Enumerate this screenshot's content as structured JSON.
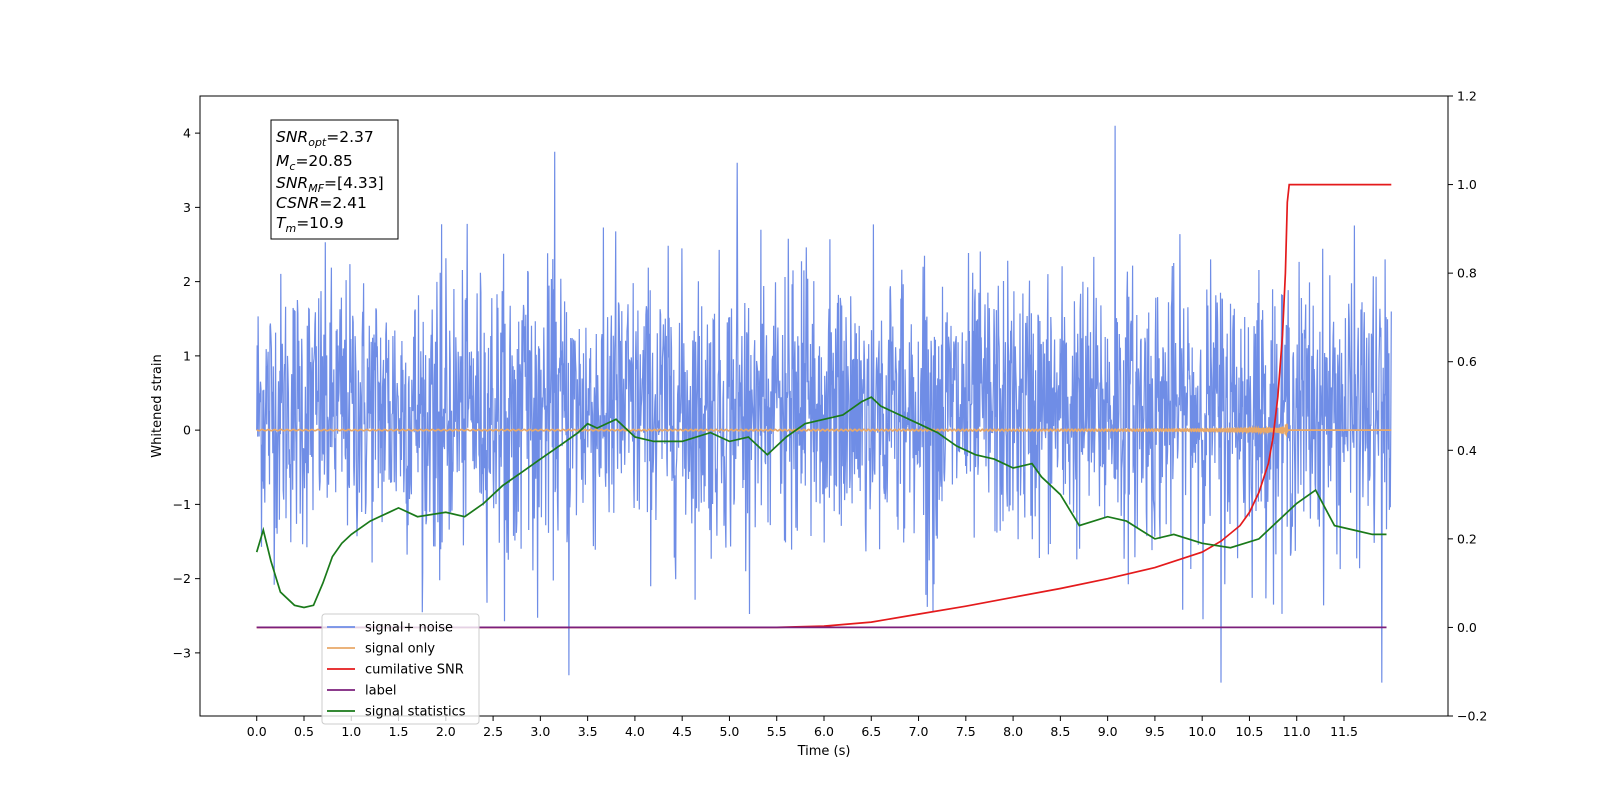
{
  "chart_data": {
    "type": "line",
    "xlabel": "Time (s)",
    "ylabel_left": "Whitened strain",
    "xlim": [
      -0.6,
      12.6
    ],
    "ylim_left": [
      -3.85,
      4.5
    ],
    "ylim_right": [
      -0.2,
      1.2
    ],
    "x_ticks": [
      0.0,
      0.5,
      1.0,
      1.5,
      2.0,
      2.5,
      3.0,
      3.5,
      4.0,
      4.5,
      5.0,
      5.5,
      6.0,
      6.5,
      7.0,
      7.5,
      8.0,
      8.5,
      9.0,
      9.5,
      10.0,
      10.5,
      11.0,
      11.5
    ],
    "x_tick_labels": [
      "0.0",
      "0.5",
      "1.0",
      "1.5",
      "2.0",
      "2.5",
      "3.0",
      "3.5",
      "4.0",
      "4.5",
      "5.0",
      "5.5",
      "6.0",
      "6.5",
      "7.0",
      "7.5",
      "8.0",
      "8.5",
      "9.0",
      "9.5",
      "10.0",
      "10.5",
      "11.0",
      "11.5"
    ],
    "y_ticks_left": [
      -3,
      -2,
      -1,
      0,
      1,
      2,
      3,
      4
    ],
    "y_tick_labels_left": [
      "−3",
      "−2",
      "−1",
      "0",
      "1",
      "2",
      "3",
      "4"
    ],
    "y_ticks_right": [
      -0.2,
      0.0,
      0.2,
      0.4,
      0.6,
      0.8,
      1.0,
      1.2
    ],
    "y_tick_labels_right": [
      "−0.2",
      "0.0",
      "0.2",
      "0.4",
      "0.6",
      "0.8",
      "1.0",
      "1.2"
    ],
    "grid": false,
    "legend_placement": "lower-left",
    "annotation_box": {
      "placement": "top-left",
      "lines": [
        {
          "base": "SNR",
          "sub": "opt",
          "rest": "=2.37"
        },
        {
          "base": "M",
          "sub": "c",
          "rest": "=20.85"
        },
        {
          "base": "SNR",
          "sub": "MF",
          "rest": "=[4.33]"
        },
        {
          "base": "CSNR",
          "sub": "",
          "rest": "=2.41"
        },
        {
          "base": "T",
          "sub": "m",
          "rest": "=10.9"
        }
      ]
    },
    "series": [
      {
        "name": "signal+ noise",
        "axis": "left",
        "color": "#6f8de6",
        "style": "noise",
        "x_range": [
          0.0,
          12.0
        ],
        "typical_range": [
          -1.7,
          2.2
        ],
        "notable_peaks": [
          [
            3.15,
            3.75
          ],
          [
            9.08,
            4.1
          ],
          [
            5.08,
            3.6
          ],
          [
            10.2,
            -3.4
          ],
          [
            11.9,
            -3.4
          ],
          [
            3.3,
            -3.3
          ]
        ]
      },
      {
        "name": "signal only",
        "axis": "left",
        "color": "#e8a868",
        "style": "chirp",
        "x_range": [
          0.0,
          10.9
        ],
        "merger_time": 10.9,
        "peak_amplitude": 0.62
      },
      {
        "name": "cumilative SNR",
        "axis": "right",
        "color": "#e41a1c",
        "x": [
          0.0,
          5.5,
          6.0,
          6.5,
          7.0,
          7.5,
          8.0,
          8.5,
          9.0,
          9.5,
          10.0,
          10.2,
          10.4,
          10.5,
          10.6,
          10.7,
          10.75,
          10.8,
          10.85,
          10.88,
          10.9,
          10.92,
          12.0
        ],
        "values": [
          0.0,
          0.0,
          0.003,
          0.012,
          0.03,
          0.048,
          0.068,
          0.088,
          0.11,
          0.135,
          0.17,
          0.195,
          0.23,
          0.26,
          0.305,
          0.37,
          0.43,
          0.52,
          0.66,
          0.8,
          0.96,
          1.0,
          1.0
        ]
      },
      {
        "name": "label",
        "axis": "right",
        "color": "#7b1f7b",
        "x": [
          0.0,
          11.95
        ],
        "values": [
          0.0,
          0.0
        ]
      },
      {
        "name": "signal statistics",
        "axis": "right",
        "color": "#1a7a1a",
        "x": [
          0.0,
          0.07,
          0.15,
          0.25,
          0.4,
          0.5,
          0.6,
          0.7,
          0.8,
          0.9,
          1.0,
          1.2,
          1.4,
          1.5,
          1.7,
          2.0,
          2.2,
          2.4,
          2.6,
          2.8,
          3.0,
          3.2,
          3.4,
          3.5,
          3.6,
          3.8,
          4.0,
          4.2,
          4.5,
          4.8,
          5.0,
          5.2,
          5.4,
          5.6,
          5.8,
          6.0,
          6.2,
          6.4,
          6.5,
          6.6,
          6.8,
          7.0,
          7.2,
          7.4,
          7.6,
          7.8,
          8.0,
          8.2,
          8.3,
          8.5,
          8.7,
          9.0,
          9.2,
          9.5,
          9.7,
          10.0,
          10.3,
          10.6,
          10.8,
          11.0,
          11.2,
          11.4,
          11.6,
          11.8,
          11.95
        ],
        "values": [
          0.17,
          0.22,
          0.15,
          0.08,
          0.05,
          0.045,
          0.05,
          0.1,
          0.16,
          0.19,
          0.21,
          0.24,
          0.26,
          0.27,
          0.25,
          0.26,
          0.25,
          0.28,
          0.32,
          0.35,
          0.38,
          0.41,
          0.44,
          0.46,
          0.45,
          0.47,
          0.43,
          0.42,
          0.42,
          0.44,
          0.42,
          0.43,
          0.39,
          0.43,
          0.46,
          0.47,
          0.48,
          0.51,
          0.52,
          0.5,
          0.48,
          0.46,
          0.44,
          0.41,
          0.39,
          0.38,
          0.36,
          0.37,
          0.34,
          0.3,
          0.23,
          0.25,
          0.24,
          0.2,
          0.21,
          0.19,
          0.18,
          0.2,
          0.24,
          0.28,
          0.31,
          0.23,
          0.22,
          0.21,
          0.21
        ]
      }
    ]
  }
}
